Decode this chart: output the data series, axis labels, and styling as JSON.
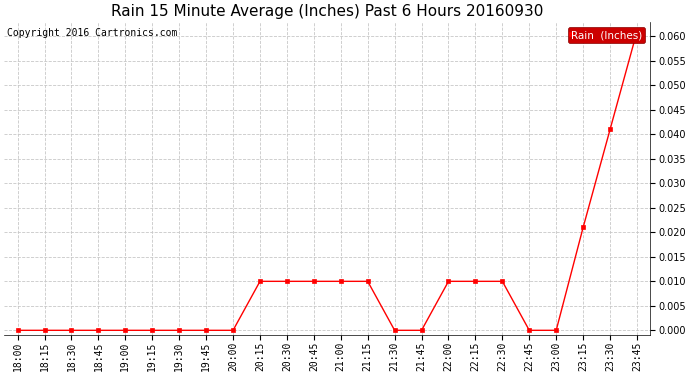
{
  "title": "Rain 15 Minute Average (Inches) Past 6 Hours 20160930",
  "copyright_text": "Copyright 2016 Cartronics.com",
  "legend_label": "Rain  (Inches)",
  "line_color": "#ff0000",
  "background_color": "#ffffff",
  "plot_bg_color": "#ffffff",
  "grid_color": "#c8c8c8",
  "x_labels": [
    "18:00",
    "18:15",
    "18:30",
    "18:45",
    "19:00",
    "19:15",
    "19:30",
    "19:45",
    "20:00",
    "20:15",
    "20:30",
    "20:45",
    "21:00",
    "21:15",
    "21:30",
    "21:45",
    "22:00",
    "22:15",
    "22:30",
    "22:45",
    "23:00",
    "23:15",
    "23:30",
    "23:45"
  ],
  "y_values": [
    0.0,
    0.0,
    0.0,
    0.0,
    0.0,
    0.0,
    0.0,
    0.0,
    0.0,
    0.01,
    0.01,
    0.01,
    0.01,
    0.01,
    0.0,
    0.0,
    0.01,
    0.01,
    0.01,
    0.0,
    0.0,
    0.021,
    0.041,
    0.061
  ],
  "ylim_min": -0.001,
  "ylim_max": 0.063,
  "yticks": [
    0.0,
    0.005,
    0.01,
    0.015,
    0.02,
    0.025,
    0.03,
    0.035,
    0.04,
    0.045,
    0.05,
    0.055,
    0.06
  ],
  "marker": "s",
  "marker_size": 2.5,
  "line_width": 1.0,
  "title_fontsize": 11,
  "tick_fontsize": 7,
  "legend_fontsize": 7.5,
  "copyright_fontsize": 7
}
